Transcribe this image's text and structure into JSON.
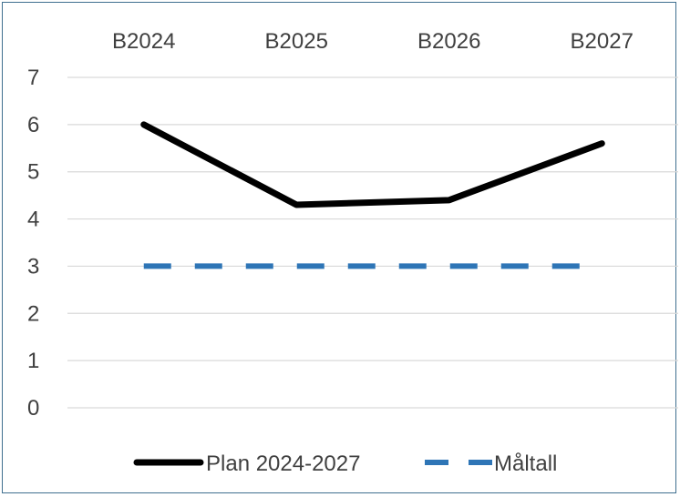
{
  "chart_data": {
    "type": "line",
    "categories": [
      "B2024",
      "B2025",
      "B2026",
      "B2027"
    ],
    "ylim": [
      0,
      7
    ],
    "y_ticks": [
      "0",
      "1",
      "2",
      "3",
      "4",
      "5",
      "6",
      "7"
    ],
    "grid": true,
    "x_axis_position": "top",
    "legend_position": "bottom",
    "series": [
      {
        "name": "Plan 2024-2027",
        "values": [
          6.0,
          4.3,
          4.4,
          5.6
        ],
        "color": "#000000",
        "style": "solid"
      },
      {
        "name": "Måltall",
        "values": [
          3,
          3,
          3,
          3
        ],
        "color": "#2e75b6",
        "style": "dashed"
      }
    ]
  }
}
